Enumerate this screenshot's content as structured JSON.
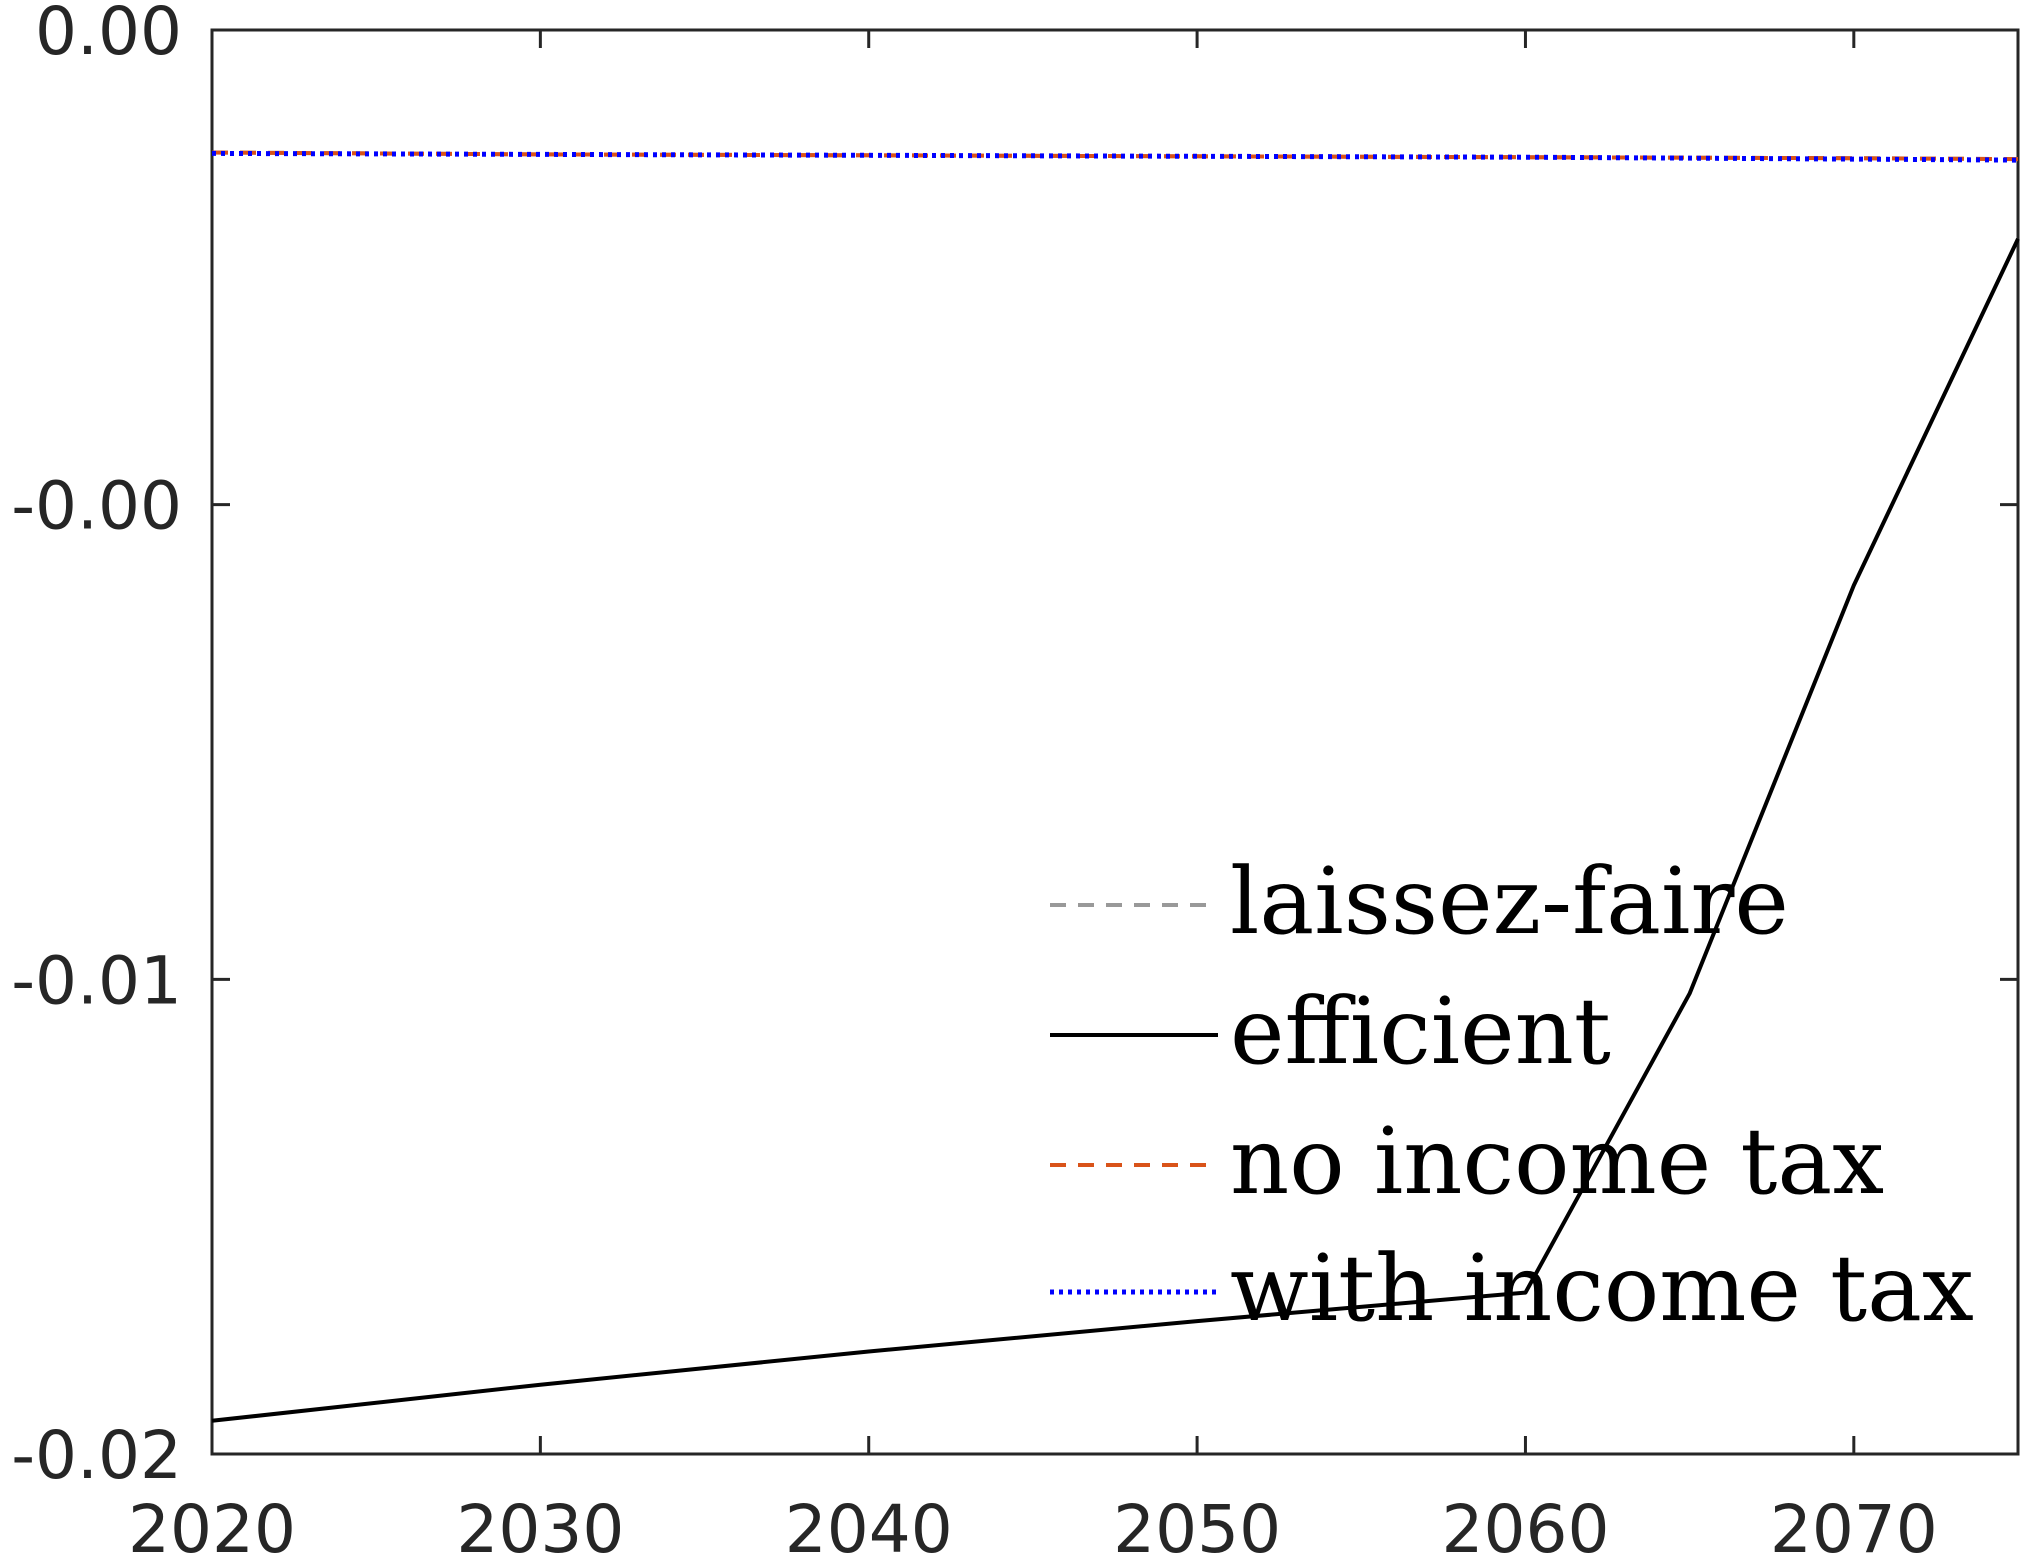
{
  "chart_data": {
    "type": "line",
    "title": "",
    "xlabel": "",
    "ylabel": "",
    "xlim": [
      2020,
      2075
    ],
    "ylim": [
      -0.015,
      0.0
    ],
    "x_ticks": [
      2020,
      2030,
      2040,
      2050,
      2060,
      2070
    ],
    "x_tick_labels": [
      "2020",
      "2030",
      "2040",
      "2050",
      "2060",
      "2070"
    ],
    "y_ticks": [
      0.0,
      -0.005,
      -0.01,
      -0.015
    ],
    "y_tick_labels": [
      "0.00",
      "-0.00",
      "-0.01",
      "-0.02"
    ],
    "grid": false,
    "legend_position": "bottom-right",
    "series": [
      {
        "name": "laissez-faire",
        "color": "#999999",
        "style": "dashed",
        "x": [
          2020,
          2030,
          2040,
          2050,
          2060,
          2070,
          2075
        ],
        "y": [
          -0.00129,
          -0.00131,
          -0.00132,
          -0.00133,
          -0.00134,
          -0.00135,
          -0.00136
        ]
      },
      {
        "name": "efficient",
        "color": "#000000",
        "style": "solid",
        "x": [
          2020,
          2030,
          2040,
          2050,
          2060,
          2065,
          2070,
          2075
        ],
        "y": [
          -0.01465,
          -0.01427,
          -0.01392,
          -0.0136,
          -0.0133,
          -0.01015,
          -0.00585,
          -0.0022
        ]
      },
      {
        "name": "no income tax",
        "color": "#D95319",
        "style": "dashed",
        "x": [
          2020,
          2030,
          2040,
          2050,
          2060,
          2070,
          2075
        ],
        "y": [
          -0.00129,
          -0.00131,
          -0.00132,
          -0.00133,
          -0.00134,
          -0.00135,
          -0.00136
        ]
      },
      {
        "name": "with income tax",
        "color": "#0000FF",
        "style": "dotted",
        "x": [
          2020,
          2030,
          2040,
          2050,
          2060,
          2070,
          2075
        ],
        "y": [
          -0.0013,
          -0.00131,
          -0.00132,
          -0.00133,
          -0.00134,
          -0.00136,
          -0.00137
        ]
      }
    ]
  }
}
